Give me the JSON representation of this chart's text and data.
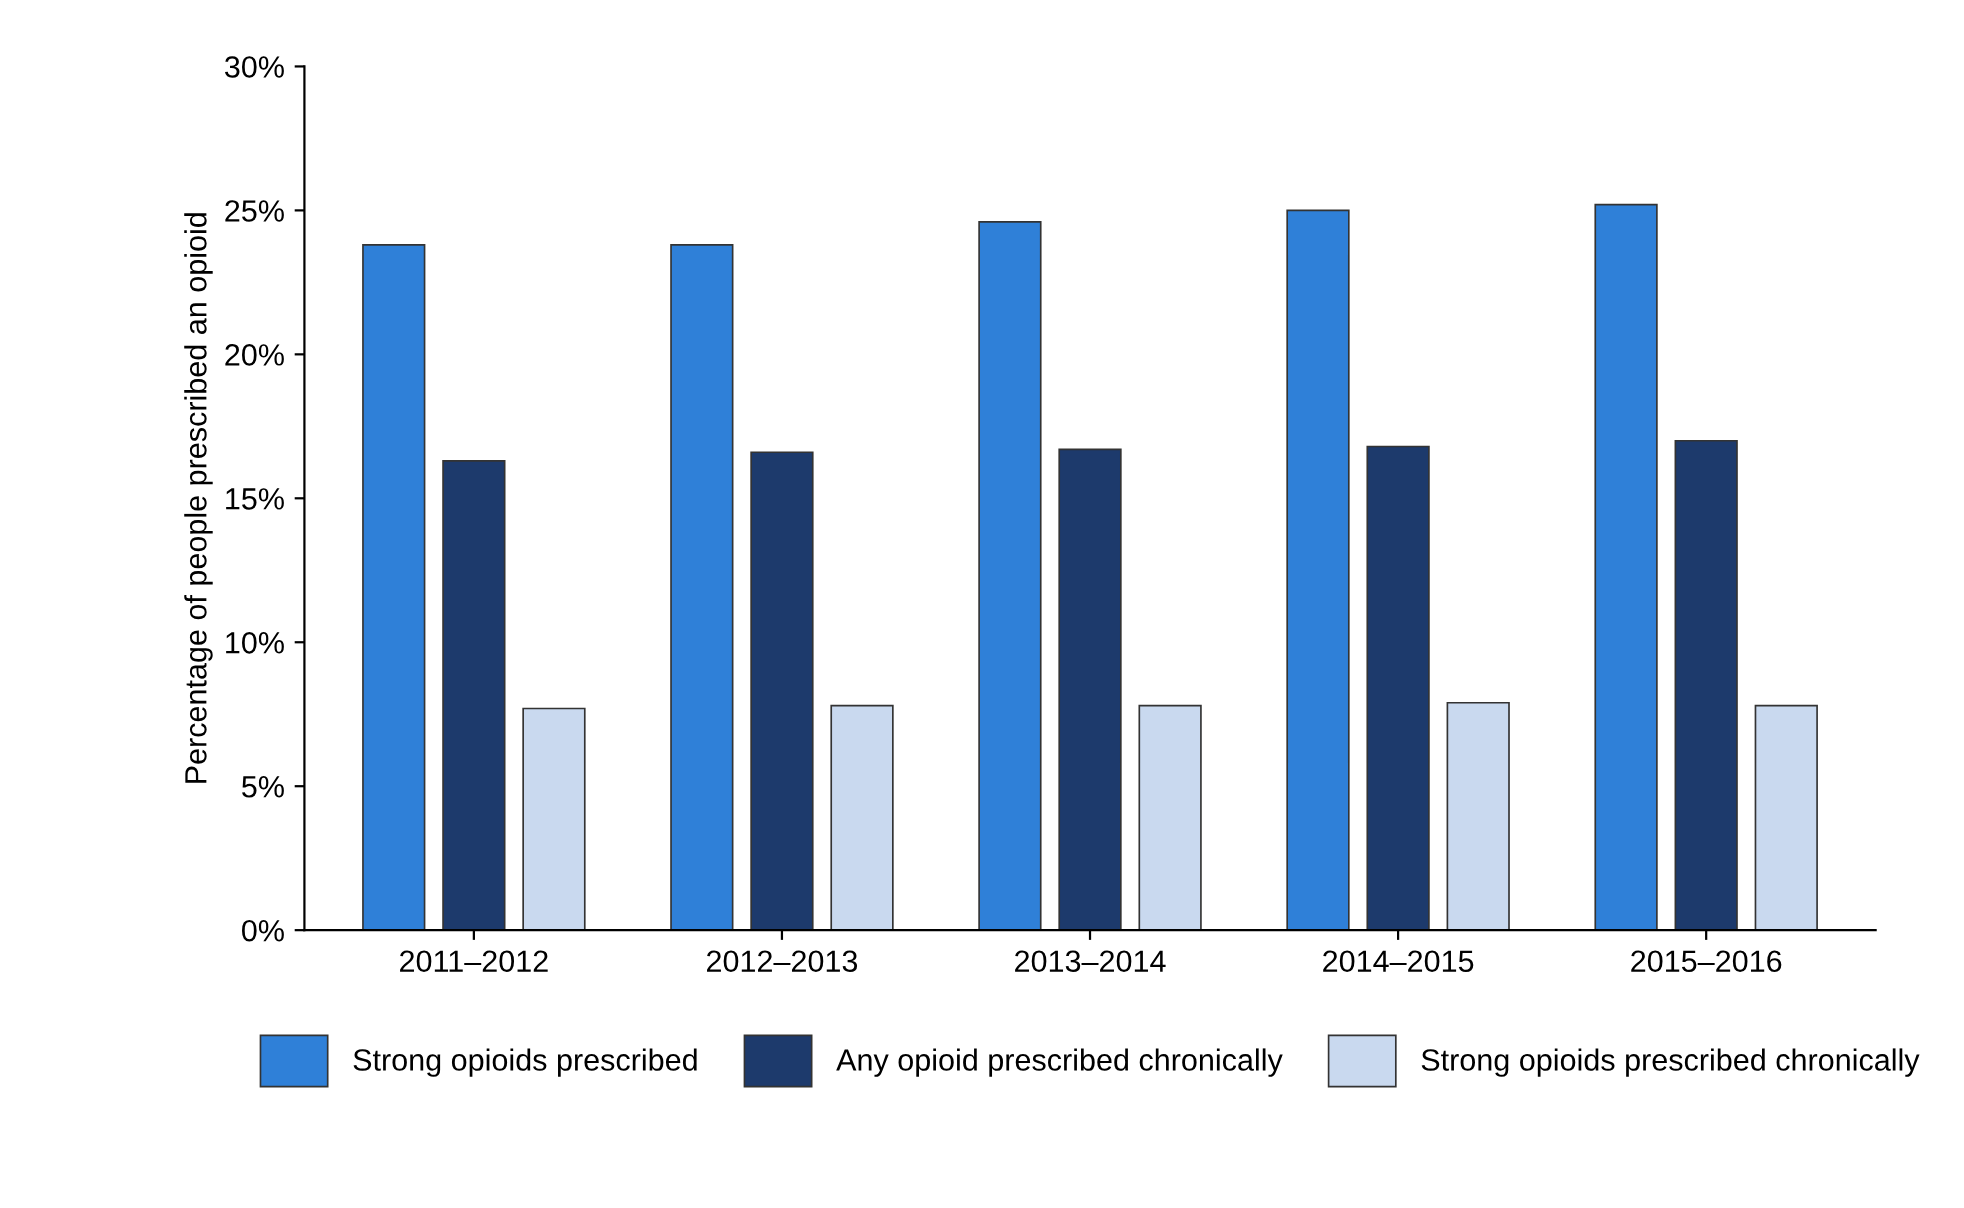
{
  "chart_data": {
    "type": "bar",
    "ylabel": "Percentage of people prescribed an opioid",
    "categories": [
      "2011–2012",
      "2012–2013",
      "2013–2014",
      "2014–2015",
      "2015–2016"
    ],
    "series": [
      {
        "name": "Strong opioids prescribed",
        "color": "#2f80d8",
        "values": [
          23.8,
          23.8,
          24.6,
          25.0,
          25.2
        ]
      },
      {
        "name": "Any opioid prescribed chronically",
        "color": "#1d3a6c",
        "values": [
          16.3,
          16.6,
          16.7,
          16.8,
          17.0
        ]
      },
      {
        "name": "Strong opioids prescribed chronically",
        "color": "#c9d9ef",
        "values": [
          7.7,
          7.8,
          7.8,
          7.9,
          7.8
        ]
      }
    ],
    "ylim": [
      0,
      30
    ],
    "yticks": [
      {
        "value": 0,
        "label": "0%"
      },
      {
        "value": 5,
        "label": "5%"
      },
      {
        "value": 10,
        "label": "10%"
      },
      {
        "value": 15,
        "label": "15%"
      },
      {
        "value": 20,
        "label": "20%"
      },
      {
        "value": 25,
        "label": "25%"
      },
      {
        "value": 30,
        "label": "30%"
      }
    ],
    "grid": false,
    "legend": "bottom"
  }
}
